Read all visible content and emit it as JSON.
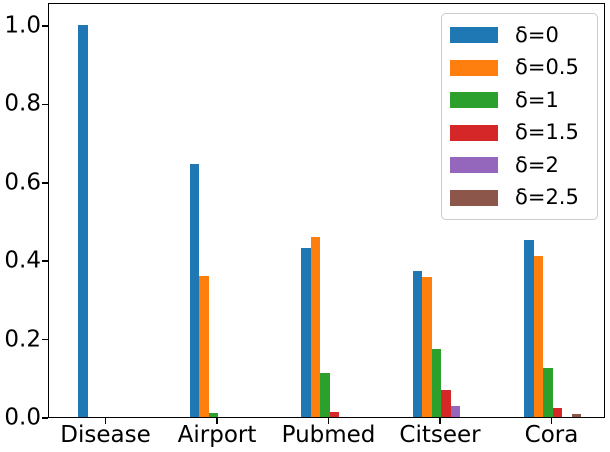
{
  "figure": {
    "background": "#ffffff",
    "spine_color": "#000000",
    "legend_border_color": "#cccccc"
  },
  "chart_data": {
    "type": "bar",
    "title": "",
    "xlabel": "",
    "ylabel": "",
    "categories": [
      "Disease",
      "Airport",
      "Pubmed",
      "Citseer",
      "Cora"
    ],
    "series": [
      {
        "name": "δ=0",
        "color": "#1f77b4",
        "values": [
          1.0,
          0.645,
          0.43,
          0.372,
          0.452
        ]
      },
      {
        "name": "δ=0.5",
        "color": "#ff7f0e",
        "values": [
          0,
          0.36,
          0.46,
          0.358,
          0.412
        ]
      },
      {
        "name": "δ=1",
        "color": "#2ca02c",
        "values": [
          0,
          0.01,
          0.112,
          0.174,
          0.124
        ]
      },
      {
        "name": "δ=1.5",
        "color": "#d62728",
        "values": [
          0,
          0,
          0.013,
          0.07,
          0.022
        ]
      },
      {
        "name": "δ=2",
        "color": "#9467bd",
        "values": [
          0,
          0,
          0,
          0.029,
          0
        ]
      },
      {
        "name": "δ=2.5",
        "color": "#8c564b",
        "values": [
          0,
          0,
          0,
          0,
          0.008
        ]
      }
    ],
    "ylim": [
      0,
      1.06
    ],
    "yticks": [
      0.0,
      0.2,
      0.4,
      0.6,
      0.8,
      1.0
    ],
    "ytick_labels": [
      "0.0",
      "0.2",
      "0.4",
      "0.6",
      "0.8",
      "1.0"
    ],
    "grid": false,
    "legend_position": "upper right"
  }
}
